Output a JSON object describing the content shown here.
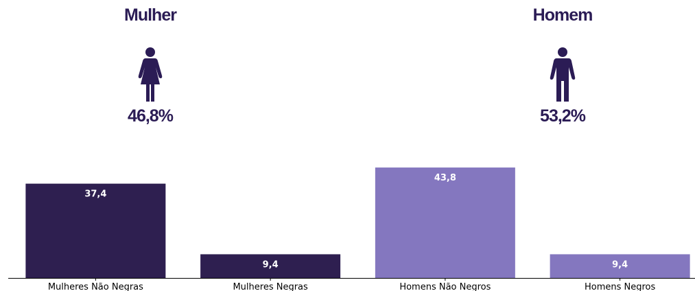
{
  "colors": {
    "dark": "#2e1f50",
    "light": "#8477bf",
    "heading": "#2b1c55",
    "white": "#ffffff",
    "axis": "#000000"
  },
  "genders": [
    {
      "title": "Mulher",
      "icon": "woman-icon",
      "percent": "46,8%"
    },
    {
      "title": "Homem",
      "icon": "man-icon",
      "percent": "53,2%"
    }
  ],
  "chart_data": {
    "type": "bar",
    "categories": [
      "Mulheres Não Negras",
      "Mulheres Negras",
      "Homens Não Negros",
      "Homens Negros"
    ],
    "values": [
      37.4,
      9.4,
      43.8,
      9.4
    ],
    "value_labels": [
      "37,4",
      "9,4",
      "43,8",
      "9,4"
    ],
    "bar_colors": [
      "#2e1f50",
      "#2e1f50",
      "#8477bf",
      "#8477bf"
    ],
    "ylim": [
      0,
      46
    ],
    "grid": false,
    "legend": "none"
  }
}
